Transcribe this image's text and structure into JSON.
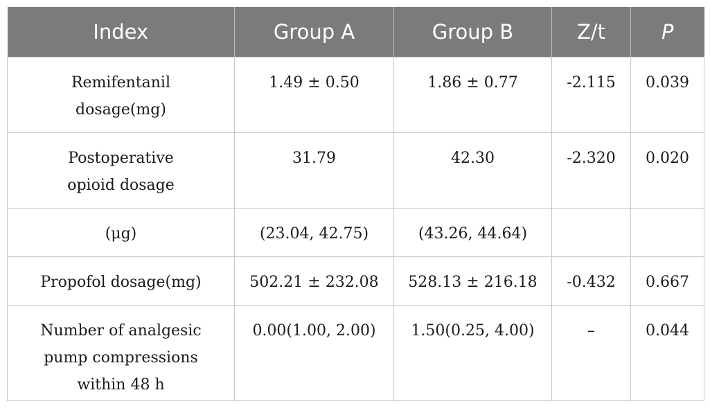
{
  "table": {
    "headers": {
      "index": "Index",
      "group_a": "Group A",
      "group_b": "Group B",
      "zt": "Z/t",
      "p": "P"
    },
    "rows": [
      {
        "index": "Remifentanil dosage(mg)",
        "group_a": "1.49 ± 0.50",
        "group_b": "1.86 ± 0.77",
        "zt": "-2.115",
        "p": "0.039"
      },
      {
        "index": "Postoperative opioid dosage",
        "group_a": "31.79",
        "group_b": "42.30",
        "zt": "-2.320",
        "p": "0.020"
      },
      {
        "index": "(μg)",
        "group_a": "(23.04, 42.75)",
        "group_b": "(43.26, 44.64)",
        "zt": "",
        "p": ""
      },
      {
        "index": "Propofol dosage(mg)",
        "group_a": "502.21 ± 232.08",
        "group_b": "528.13 ± 216.18",
        "zt": "-0.432",
        "p": "0.667"
      },
      {
        "index": "Number of analgesic pump compressions within 48 h",
        "group_a": "0.00(1.00, 2.00)",
        "group_b": "1.50(0.25, 4.00)",
        "zt": "–",
        "p": "0.044"
      }
    ]
  },
  "colors": {
    "header_bg": "#7b7b7b",
    "header_text": "#ffffff",
    "grid": "#c8c8c8"
  }
}
